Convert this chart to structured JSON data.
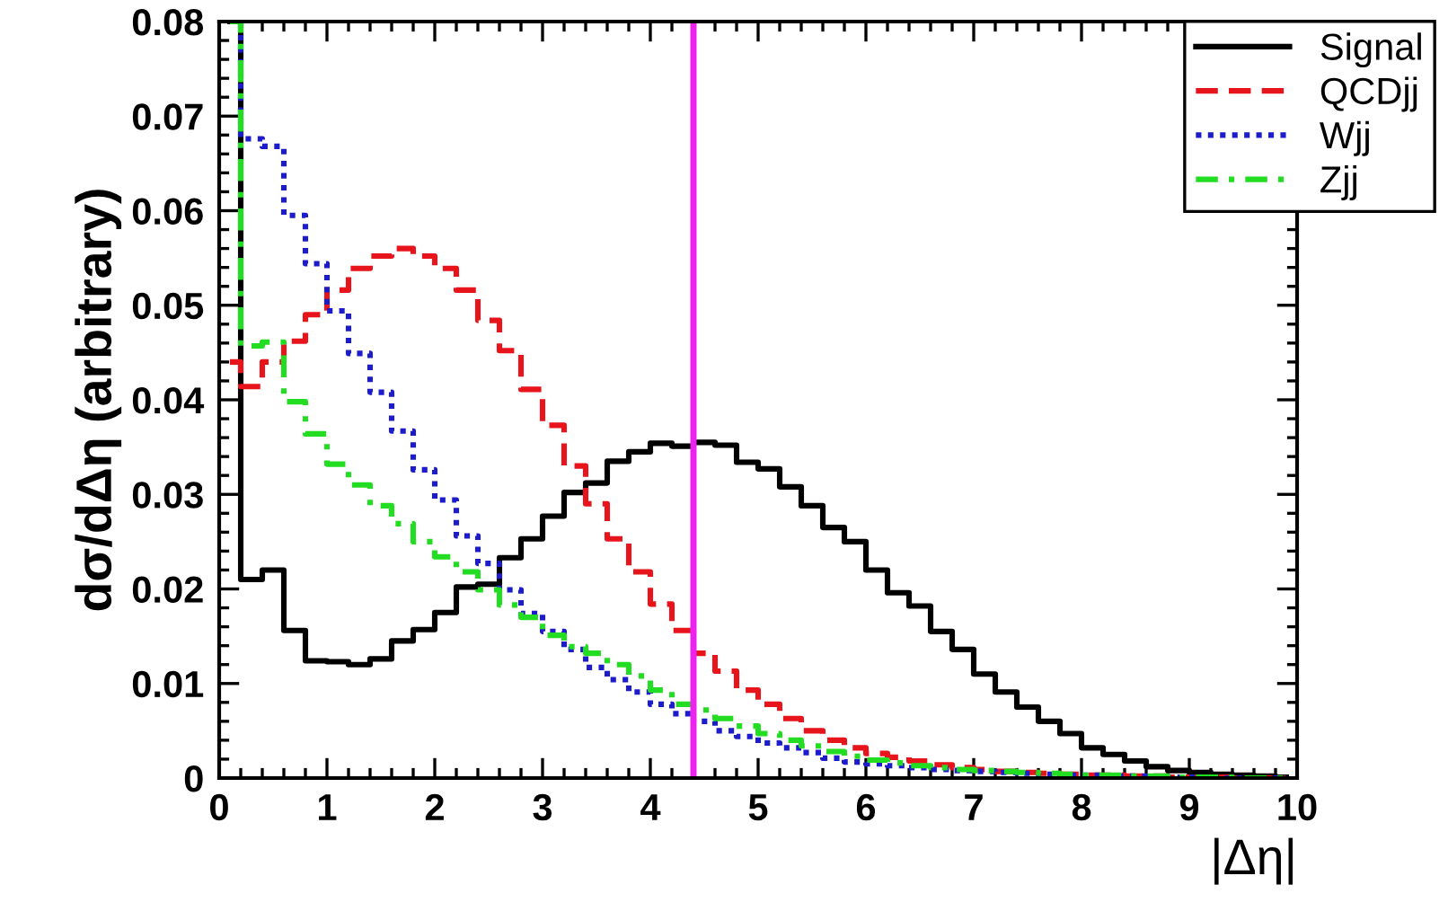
{
  "chart_data": {
    "type": "step",
    "xlabel": "|Δη|",
    "ylabel": "dσ/dΔη (arbitrary)",
    "x": [
      0.1,
      0.3,
      0.5,
      0.7,
      0.9,
      1.1,
      1.3,
      1.5,
      1.7,
      1.9,
      2.1,
      2.3,
      2.5,
      2.7,
      2.9,
      3.1,
      3.3,
      3.5,
      3.7,
      3.9,
      4.1,
      4.3,
      4.5,
      4.7,
      4.9,
      5.1,
      5.3,
      5.5,
      5.7,
      5.9,
      6.1,
      6.3,
      6.5,
      6.7,
      6.9,
      7.1,
      7.3,
      7.5,
      7.7,
      7.9,
      8.1,
      8.3,
      8.5,
      8.7,
      8.9,
      9.1,
      9.3,
      9.5,
      9.7,
      9.9
    ],
    "series": [
      {
        "name": "Signal",
        "color": "#000000",
        "line_style": "solid",
        "values": [
          0.08,
          0.021,
          0.022,
          0.0156,
          0.0124,
          0.0123,
          0.012,
          0.0126,
          0.0145,
          0.0157,
          0.0175,
          0.0202,
          0.0205,
          0.0233,
          0.0253,
          0.0277,
          0.0302,
          0.0312,
          0.0335,
          0.0345,
          0.0354,
          0.0351,
          0.0355,
          0.0352,
          0.0334,
          0.0327,
          0.0308,
          0.0288,
          0.0265,
          0.025,
          0.022,
          0.0196,
          0.0182,
          0.0155,
          0.0136,
          0.011,
          0.0091,
          0.0075,
          0.006,
          0.0047,
          0.0032,
          0.0025,
          0.0018,
          0.0012,
          0.0008,
          0.0006,
          0.0004,
          0.0003,
          0.0002,
          0.0001
        ]
      },
      {
        "name": "QCDjj",
        "color": "#e8141c",
        "line_style": "dashed",
        "values": [
          0.044,
          0.0414,
          0.044,
          0.0462,
          0.049,
          0.0516,
          0.0539,
          0.0552,
          0.056,
          0.0552,
          0.0539,
          0.0516,
          0.0484,
          0.0452,
          0.0411,
          0.0373,
          0.033,
          0.029,
          0.0253,
          0.0218,
          0.0184,
          0.0156,
          0.0132,
          0.0113,
          0.0093,
          0.0078,
          0.0063,
          0.005,
          0.004,
          0.0032,
          0.0026,
          0.0022,
          0.0018,
          0.0014,
          0.0011,
          0.0009,
          0.0007,
          0.0006,
          0.0005,
          0.0004,
          0.0003,
          0.0003,
          0.0002,
          0.0002,
          0.0001,
          0.0001,
          0.0001,
          0,
          0,
          0
        ]
      },
      {
        "name": "Wjj",
        "color": "#1c1ccc",
        "line_style": "dotted",
        "values": [
          0.08,
          0.0676,
          0.0668,
          0.0595,
          0.0544,
          0.0494,
          0.0449,
          0.0408,
          0.0367,
          0.0326,
          0.0294,
          0.0256,
          0.0227,
          0.0199,
          0.0174,
          0.0155,
          0.0136,
          0.0117,
          0.0104,
          0.0091,
          0.0078,
          0.0068,
          0.006,
          0.005,
          0.0044,
          0.0037,
          0.0032,
          0.0027,
          0.0021,
          0.0017,
          0.0015,
          0.0013,
          0.0011,
          0.0009,
          0.0008,
          0.0007,
          0.0006,
          0.0005,
          0.0004,
          0.0003,
          0.0003,
          0.0002,
          0.0002,
          0.0001,
          0.0001,
          0.0001,
          0,
          0,
          0,
          0
        ]
      },
      {
        "name": "Zjj",
        "color": "#22dd22",
        "line_style": "dashdot",
        "values": [
          0.08,
          0.0457,
          0.0461,
          0.0398,
          0.0364,
          0.0332,
          0.031,
          0.0288,
          0.0269,
          0.025,
          0.0234,
          0.0218,
          0.0199,
          0.0183,
          0.017,
          0.0151,
          0.0139,
          0.0132,
          0.012,
          0.0108,
          0.0093,
          0.0078,
          0.0072,
          0.0063,
          0.0055,
          0.0047,
          0.004,
          0.0034,
          0.0028,
          0.0023,
          0.0019,
          0.0016,
          0.0013,
          0.0011,
          0.0009,
          0.0008,
          0.0007,
          0.0006,
          0.0005,
          0.0004,
          0.0003,
          0.0003,
          0.0002,
          0.0002,
          0.0001,
          0.0001,
          0.0001,
          0,
          0,
          0
        ]
      }
    ],
    "xlim": [
      0,
      10
    ],
    "xticks": [
      0,
      1,
      2,
      3,
      4,
      5,
      6,
      7,
      8,
      9,
      10
    ],
    "ylim": [
      0,
      0.08
    ],
    "yticks": [
      0,
      0.01,
      0.02,
      0.03,
      0.04,
      0.05,
      0.06,
      0.07,
      0.08
    ],
    "ref_lines": [
      {
        "axis": "x",
        "value": 4.4,
        "color": "#ee22ee"
      }
    ],
    "legend": "top right",
    "grid": false
  }
}
